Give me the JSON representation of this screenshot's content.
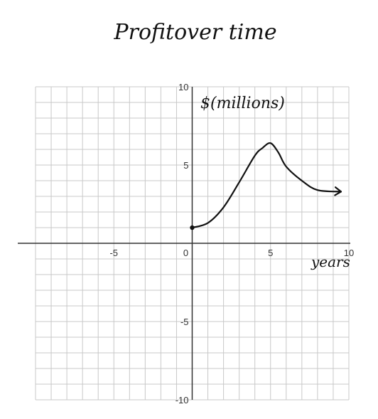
{
  "chart_data": {
    "type": "line",
    "title": "Profitover time",
    "xlabel": "years",
    "ylabel": "$(millions)",
    "xlim": [
      -10,
      10
    ],
    "ylim": [
      -10,
      10
    ],
    "grid": true,
    "x_ticks": [
      {
        "value": -5,
        "label": "-5"
      },
      {
        "value": 0,
        "label": "0"
      },
      {
        "value": 5,
        "label": "5"
      },
      {
        "value": 10,
        "label": "10"
      }
    ],
    "y_ticks": [
      {
        "value": 10,
        "label": "10"
      },
      {
        "value": 5,
        "label": "5"
      },
      {
        "value": -5,
        "label": "-5"
      },
      {
        "value": -10,
        "label": "-10"
      }
    ],
    "series": [
      {
        "x": [
          0,
          1,
          2,
          3,
          4,
          4.5,
          5,
          5.5,
          6,
          7,
          8,
          9.5
        ],
        "y": [
          1,
          1.3,
          2.3,
          3.9,
          5.6,
          6.1,
          6.4,
          5.8,
          4.9,
          4.0,
          3.4,
          3.3
        ],
        "start_marker": true,
        "end_arrow": true
      }
    ]
  }
}
